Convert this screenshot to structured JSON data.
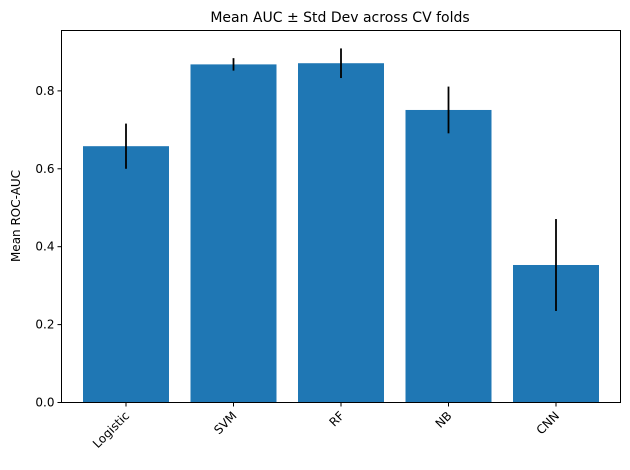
{
  "chart_data": {
    "type": "bar",
    "title": "Mean AUC ± Std Dev across CV folds",
    "xlabel": "",
    "ylabel": "Mean ROC-AUC",
    "categories": [
      "Logistic",
      "SVM",
      "RF",
      "NB",
      "CNN"
    ],
    "values": [
      0.658,
      0.868,
      0.871,
      0.751,
      0.353
    ],
    "errors": [
      0.058,
      0.016,
      0.038,
      0.06,
      0.118
    ],
    "ylim": [
      0,
      0.955
    ],
    "yticks": [
      0.0,
      0.2,
      0.4,
      0.6,
      0.8
    ],
    "ytick_labels": [
      "0.0",
      "0.2",
      "0.4",
      "0.6",
      "0.8"
    ],
    "grid": false,
    "bar_color": "#1f77b4",
    "error_color": "#000000"
  }
}
